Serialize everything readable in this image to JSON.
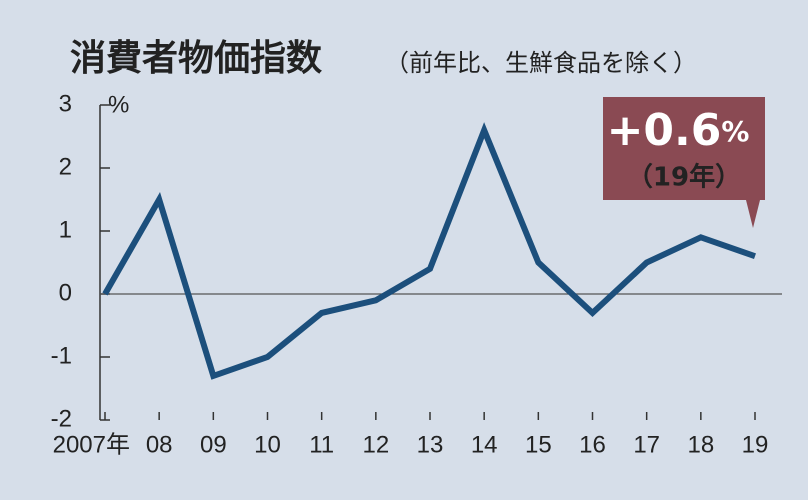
{
  "chart_data": {
    "type": "line",
    "title": "消費者物価指数",
    "subtitle": "（前年比、生鮮食品を除く）",
    "y_unit": "%",
    "categories": [
      "2007年",
      "08",
      "09",
      "10",
      "11",
      "12",
      "13",
      "14",
      "15",
      "16",
      "17",
      "18",
      "19"
    ],
    "values": [
      0,
      1.5,
      -1.3,
      -1.0,
      -0.3,
      -0.1,
      0.4,
      2.6,
      0.5,
      -0.3,
      0.5,
      0.9,
      0.6
    ],
    "color": "#1c4f7c",
    "ylim": [
      -2,
      3
    ],
    "yticks": [
      3,
      2,
      1,
      0,
      -1,
      -2
    ],
    "annotation": {
      "text": "+0.6",
      "unit": "%",
      "note": "（19年）"
    }
  }
}
